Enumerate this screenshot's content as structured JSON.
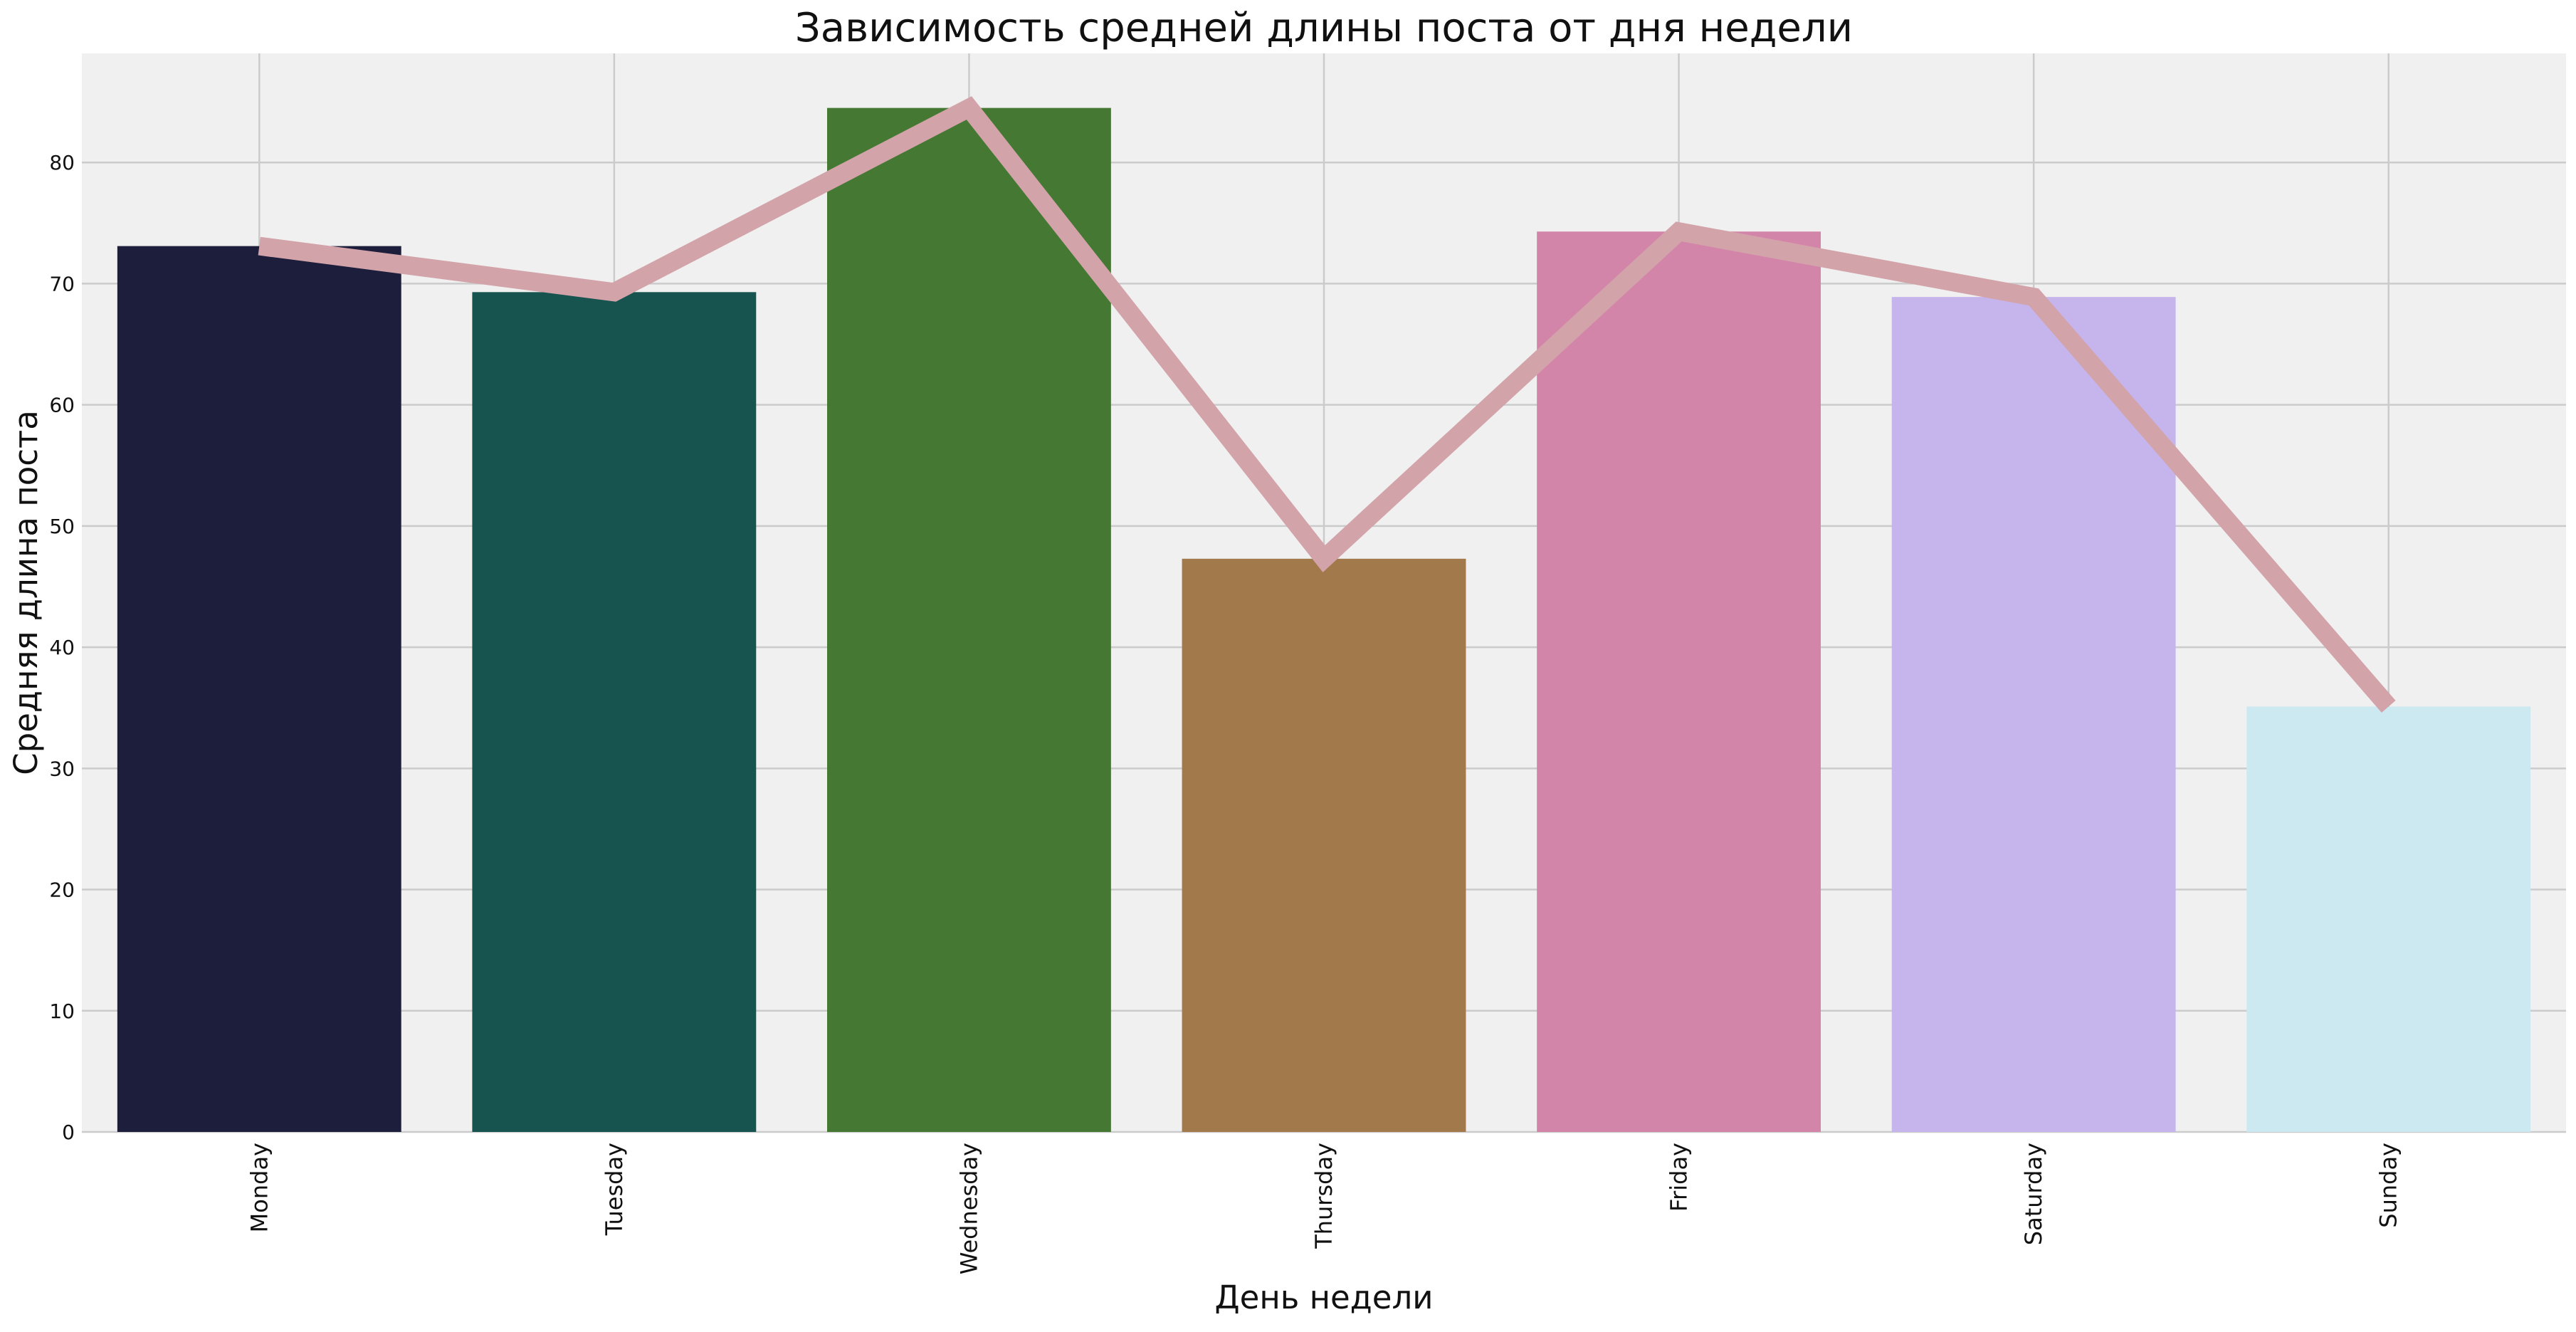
{
  "chart_data": {
    "type": "bar",
    "title": "Зависимость средней длины поста от дня недели",
    "xlabel": "День недели",
    "ylabel": "Средняя длина поста",
    "categories": [
      "Monday",
      "Tuesday",
      "Wednesday",
      "Thursday",
      "Friday",
      "Saturday",
      "Sunday"
    ],
    "values": [
      73.1,
      69.3,
      84.5,
      47.3,
      74.3,
      68.9,
      35.1
    ],
    "bar_colors": [
      "#1c1e3b",
      "#18544f",
      "#457833",
      "#a1794b",
      "#d385a9",
      "#c6b4ed",
      "#cce8f0"
    ],
    "overlay_line": {
      "values": [
        73.1,
        69.3,
        84.5,
        47.3,
        74.3,
        68.9,
        35.1
      ],
      "color": "#d3a3aa"
    },
    "ylim": [
      0,
      89
    ],
    "yticks": [
      0,
      10,
      20,
      30,
      40,
      50,
      60,
      70,
      80
    ],
    "grid": true,
    "background": "#f0f0f0",
    "grid_color": "#cbcbcb"
  }
}
